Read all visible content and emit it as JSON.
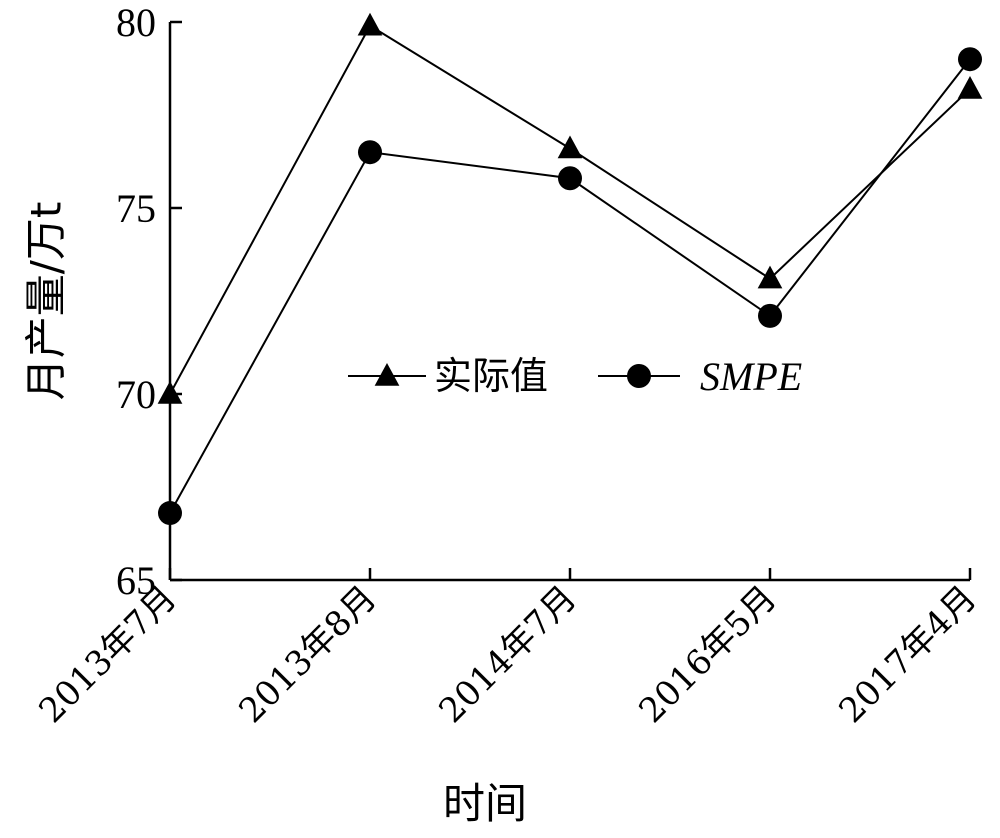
{
  "chart_data": {
    "type": "line",
    "title": "",
    "xlabel": "时间",
    "ylabel": "月产量/万t",
    "categories": [
      "2013年7月",
      "2013年8月",
      "2014年7月",
      "2016年5月",
      "2017年4月"
    ],
    "ylim": [
      65,
      80
    ],
    "yticks": [
      65,
      70,
      75,
      80
    ],
    "grid": false,
    "legend_position": "center",
    "series": [
      {
        "name": "实际值",
        "marker": "triangle",
        "values": [
          70.0,
          79.9,
          76.6,
          73.1,
          78.2
        ]
      },
      {
        "name": "SMPE",
        "marker": "circle",
        "values": [
          66.8,
          76.5,
          75.8,
          72.1,
          79.0
        ]
      }
    ]
  }
}
